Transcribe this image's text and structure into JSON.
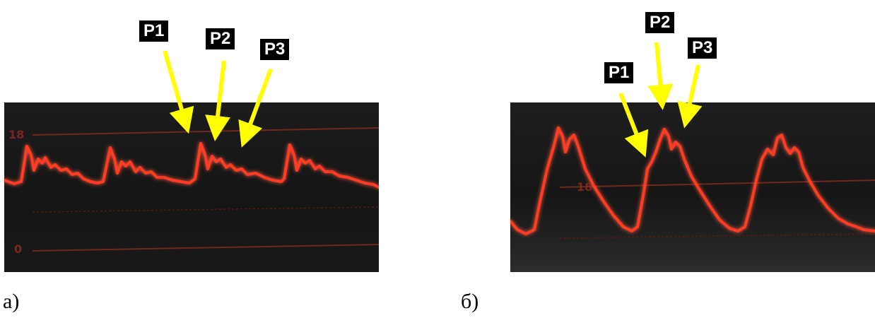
{
  "panels": [
    {
      "caption": "а)",
      "scale_high": "18",
      "scale_low": "0",
      "peaks": [
        "P1",
        "P2",
        "P3"
      ]
    },
    {
      "caption": "б)",
      "scale_high": "18",
      "peaks": [
        "P1",
        "P2",
        "P3"
      ]
    }
  ],
  "colors": {
    "waveform": "#ff3b24",
    "gridline": "#8a2b22",
    "arrow": "#ffff00",
    "tag_background": "#000000"
  }
}
